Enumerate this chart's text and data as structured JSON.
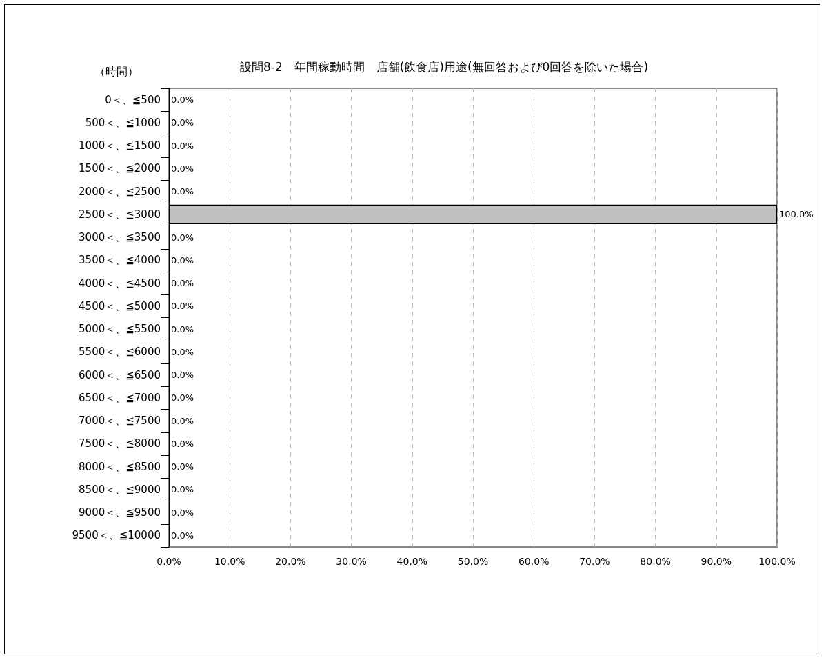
{
  "chart_data": {
    "type": "bar",
    "orientation": "horizontal",
    "title": "設問8-2　年間稼動時間　店舗(飲食店)用途(無回答および0回答を除いた場合)",
    "ylabel": "（時間）",
    "categories": [
      "0＜、≦500",
      "500＜、≦1000",
      "1000＜、≦1500",
      "1500＜、≦2000",
      "2000＜、≦2500",
      "2500＜、≦3000",
      "3000＜、≦3500",
      "3500＜、≦4000",
      "4000＜、≦4500",
      "4500＜、≦5000",
      "5000＜、≦5500",
      "5500＜、≦6000",
      "6000＜、≦6500",
      "6500＜、≦7000",
      "7000＜、≦7500",
      "7500＜、≦8000",
      "8000＜、≦8500",
      "8500＜、≦9000",
      "9000＜、≦9500",
      "9500＜、≦10000"
    ],
    "values": [
      0,
      0,
      0,
      0,
      0,
      100,
      0,
      0,
      0,
      0,
      0,
      0,
      0,
      0,
      0,
      0,
      0,
      0,
      0,
      0
    ],
    "value_labels": [
      "0.0%",
      "0.0%",
      "0.0%",
      "0.0%",
      "0.0%",
      "100.0%",
      "0.0%",
      "0.0%",
      "0.0%",
      "0.0%",
      "0.0%",
      "0.0%",
      "0.0%",
      "0.0%",
      "0.0%",
      "0.0%",
      "0.0%",
      "0.0%",
      "0.0%",
      "0.0%"
    ],
    "color": "#c0c0c0",
    "xlim": [
      0,
      100
    ],
    "xticks": [
      {
        "value": 0,
        "label": "0.0%"
      },
      {
        "value": 10,
        "label": "10.0%"
      },
      {
        "value": 20,
        "label": "20.0%"
      },
      {
        "value": 30,
        "label": "30.0%"
      },
      {
        "value": 40,
        "label": "40.0%"
      },
      {
        "value": 50,
        "label": "50.0%"
      },
      {
        "value": 60,
        "label": "60.0%"
      },
      {
        "value": 70,
        "label": "70.0%"
      },
      {
        "value": 80,
        "label": "80.0%"
      },
      {
        "value": 90,
        "label": "90.0%"
      },
      {
        "value": 100,
        "label": "100.0%"
      }
    ],
    "grid": "x"
  }
}
